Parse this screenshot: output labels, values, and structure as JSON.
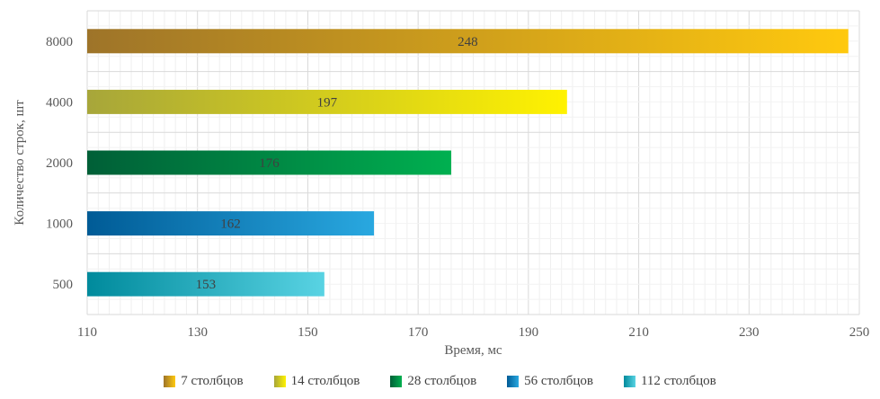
{
  "chart_data": {
    "type": "bar",
    "orientation": "horizontal",
    "title": "",
    "xlabel": "Время, мс",
    "ylabel": "Количество строк, шт",
    "xlim": [
      110,
      250
    ],
    "xticks": [
      110,
      130,
      150,
      170,
      190,
      210,
      230,
      250
    ],
    "categories": [
      "8000",
      "4000",
      "2000",
      "1000",
      "500"
    ],
    "values": [
      248,
      197,
      176,
      162,
      153
    ],
    "data_labels": [
      "248",
      "197",
      "176",
      "162",
      "153"
    ],
    "series_names": [
      "7 столбцов",
      "14 столбцов",
      "28 столбцов",
      "56 столбцов",
      "112 столбцов"
    ],
    "gradients": [
      [
        "#9e7429",
        "#ffc90e"
      ],
      [
        "#a7a63a",
        "#fff200"
      ],
      [
        "#005f37",
        "#00b050"
      ],
      [
        "#005b96",
        "#29a8e0"
      ],
      [
        "#008a9c",
        "#59d3e3"
      ]
    ],
    "legend_position": "bottom",
    "grid": true
  }
}
